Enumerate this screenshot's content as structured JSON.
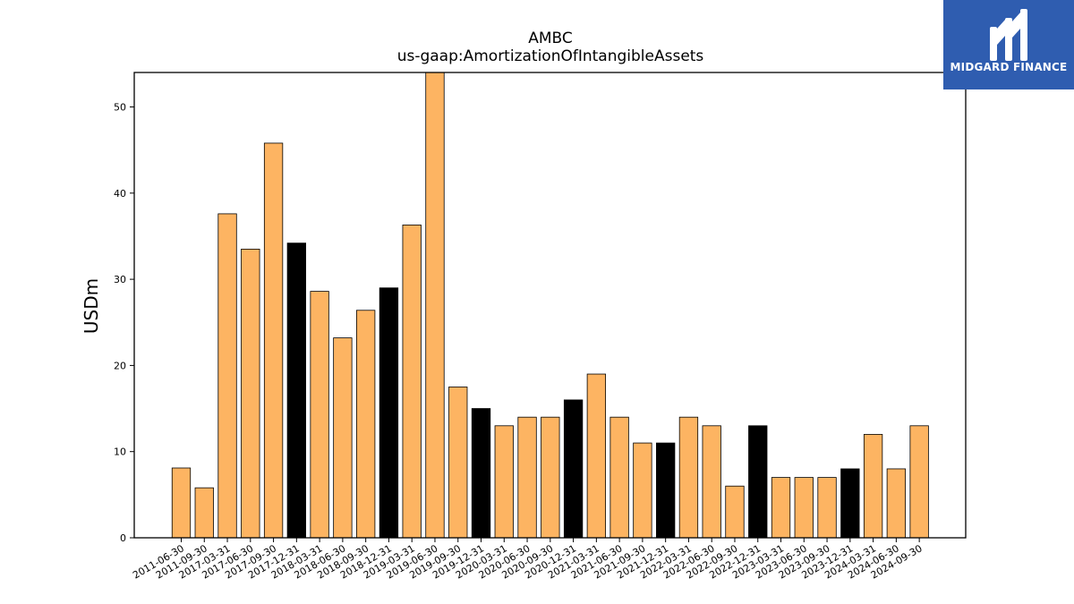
{
  "chart_data": {
    "type": "bar",
    "title": "AMBC",
    "subtitle": "us-gaap:AmortizationOfIntangibleAssets",
    "ylabel": "USDm",
    "xlabel": "",
    "ylim": [
      0,
      54
    ],
    "yticks": [
      0,
      10,
      20,
      30,
      40,
      50
    ],
    "grid": false,
    "categories": [
      "2011-06-30",
      "2011-09-30",
      "2017-03-31",
      "2017-06-30",
      "2017-09-30",
      "2017-12-31",
      "2018-03-31",
      "2018-06-30",
      "2018-09-30",
      "2018-12-31",
      "2019-03-31",
      "2019-06-30",
      "2019-09-30",
      "2019-12-31",
      "2020-03-31",
      "2020-06-30",
      "2020-09-30",
      "2020-12-31",
      "2021-03-31",
      "2021-06-30",
      "2021-09-30",
      "2021-12-31",
      "2022-03-31",
      "2022-06-30",
      "2022-09-30",
      "2022-12-31",
      "2023-03-31",
      "2023-06-30",
      "2023-09-30",
      "2023-12-31",
      "2024-03-31",
      "2024-06-30",
      "2024-09-30"
    ],
    "values": [
      8.1,
      5.8,
      37.6,
      33.5,
      45.8,
      34.2,
      28.6,
      23.2,
      26.4,
      29.0,
      36.3,
      54.0,
      17.5,
      15.0,
      13.0,
      14.0,
      14.0,
      16.0,
      19.0,
      14.0,
      11.0,
      11.0,
      14.0,
      13.0,
      6.0,
      13.0,
      7.0,
      7.0,
      7.0,
      8.0,
      12.0,
      8.0,
      13.0
    ],
    "bar_colors": [
      "#fdb462",
      "#fdb462",
      "#fdb462",
      "#fdb462",
      "#fdb462",
      "#000000",
      "#fdb462",
      "#fdb462",
      "#fdb462",
      "#000000",
      "#fdb462",
      "#fdb462",
      "#fdb462",
      "#000000",
      "#fdb462",
      "#fdb462",
      "#fdb462",
      "#000000",
      "#fdb462",
      "#fdb462",
      "#fdb462",
      "#000000",
      "#fdb462",
      "#fdb462",
      "#fdb462",
      "#000000",
      "#fdb462",
      "#fdb462",
      "#fdb462",
      "#000000",
      "#fdb462",
      "#fdb462",
      "#fdb462"
    ]
  },
  "logo": {
    "text": "MIDGARD FINANCE",
    "background": "#2f5db0",
    "icon": "midgard-m-icon"
  }
}
